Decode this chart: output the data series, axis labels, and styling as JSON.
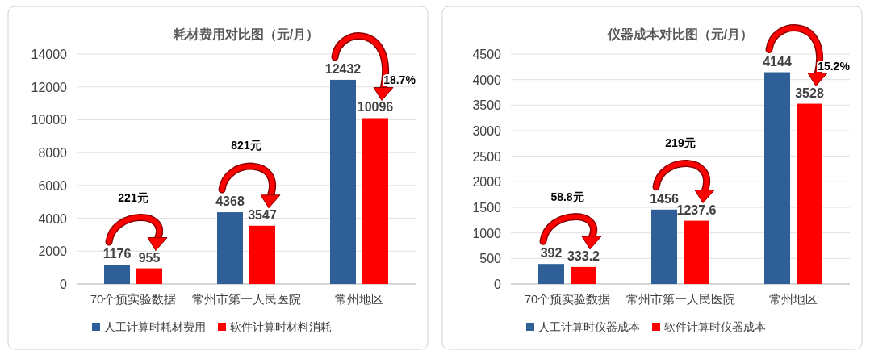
{
  "chart_data": [
    {
      "type": "bar",
      "title": "耗材费用对比图（元/月）",
      "categories": [
        "70个预实验数据",
        "常州市第一人民医院",
        "常州地区"
      ],
      "series": [
        {
          "name": "人工计算时耗材费用",
          "color": "#2e5f96",
          "values": [
            1176,
            4368,
            12432
          ]
        },
        {
          "name": "软件计算时材料消耗",
          "color": "#ff0000",
          "values": [
            955,
            3547,
            10096
          ]
        }
      ],
      "ylim": [
        0,
        14000
      ],
      "yticks": [
        0,
        2000,
        4000,
        6000,
        8000,
        10000,
        12000,
        14000
      ],
      "grid": "y",
      "legend": "bottom",
      "data_labels": true,
      "annotations": [
        "221元",
        "821元",
        "18.7%"
      ]
    },
    {
      "type": "bar",
      "title": "仪器成本对比图（元/月）",
      "categories": [
        "70个预实验数据",
        "常州市第一人民医院",
        "常州地区"
      ],
      "series": [
        {
          "name": "人工计算时仪器成本",
          "color": "#2e5f96",
          "values": [
            392,
            1456,
            4144
          ]
        },
        {
          "name": "软件计算时仪器成本",
          "color": "#ff0000",
          "values": [
            333.2,
            1237.6,
            3528
          ]
        }
      ],
      "ylim": [
        0,
        4500
      ],
      "yticks": [
        0,
        500,
        1000,
        1500,
        2000,
        2500,
        3000,
        3500,
        4000,
        4500
      ],
      "grid": "y",
      "legend": "bottom",
      "data_labels": true,
      "annotations": [
        "58.8元",
        "219元",
        "15.2%"
      ]
    }
  ]
}
